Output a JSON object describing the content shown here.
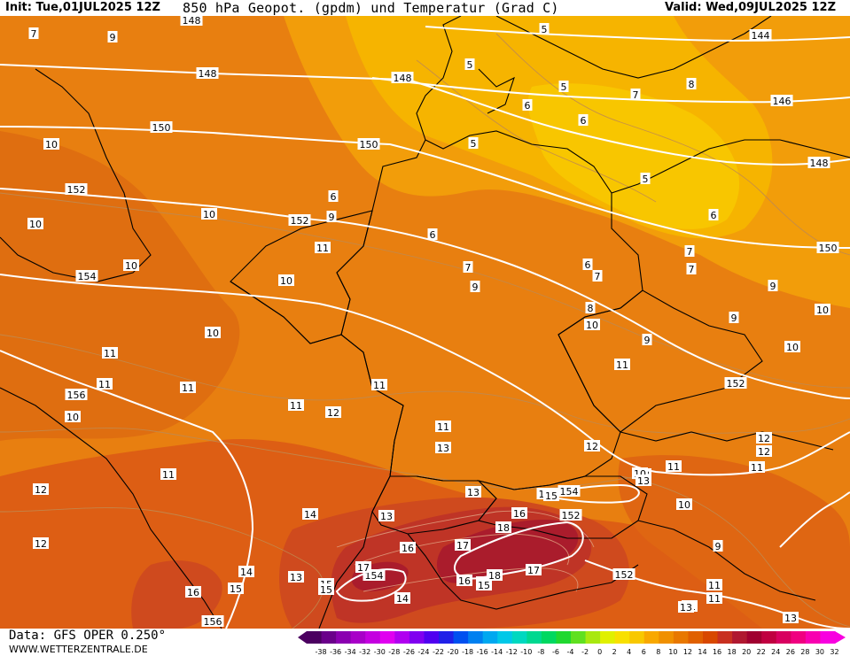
{
  "header": {
    "init": "Init: Tue,01JUL2025 12Z",
    "title": "850 hPa Geopot. (gpdm) und Temperatur (Grad C)",
    "valid": "Valid: Wed,09JUL2025 12Z"
  },
  "footer": {
    "data_source": "Data: GFS OPER 0.250°",
    "website": "WWW.WETTERZENTRALE.DE"
  },
  "legend": {
    "values": [
      "-38",
      "-36",
      "-34",
      "-32",
      "-30",
      "-28",
      "-26",
      "-24",
      "-22",
      "-20",
      "-18",
      "-16",
      "-14",
      "-12",
      "-10",
      "-8",
      "-6",
      "-4",
      "-2",
      "0",
      "2",
      "4",
      "6",
      "8",
      "10",
      "12",
      "14",
      "16",
      "18",
      "20",
      "22",
      "24",
      "26",
      "28",
      "30",
      "32"
    ],
    "colors": [
      "#4b0060",
      "#6a008a",
      "#8a00b0",
      "#a800c8",
      "#c400e0",
      "#e000f0",
      "#b000f0",
      "#8000f0",
      "#5000f0",
      "#2020e8",
      "#0050f0",
      "#0080f0",
      "#00a8f0",
      "#00c8e8",
      "#00d8c0",
      "#00d890",
      "#00d860",
      "#20d830",
      "#60e020",
      "#a8e810",
      "#e0f000",
      "#f8e000",
      "#f8c800",
      "#f8a800",
      "#f09000",
      "#e87800",
      "#e06000",
      "#d84800",
      "#c83020",
      "#b01830",
      "#a00030",
      "#c00040",
      "#d80060",
      "#f00080",
      "#f800b0",
      "#f800e0"
    ]
  },
  "map": {
    "colors": {
      "base": "#e87f10",
      "deep": "#df6a0c",
      "north": "#f29d0a",
      "yellow": "#f6b800",
      "brightyellow": "#f8c800",
      "hot": "#d9501a",
      "hotter": "#c83822",
      "hottest": "#b5202a",
      "isoline": "#ffffff",
      "tempcontour": "#b0b0b0",
      "border": "#000000"
    },
    "geopotential_labels": [
      "148",
      "148",
      "148",
      "144",
      "146",
      "148",
      "150",
      "150",
      "150",
      "152",
      "152",
      "154",
      "156",
      "152",
      "154",
      "152",
      "152",
      "154",
      "156",
      "15",
      "15",
      "15",
      "150"
    ],
    "temperature_labels": [
      "7",
      "9",
      "5",
      "5",
      "5",
      "7",
      "8",
      "6",
      "6",
      "5",
      "10",
      "10",
      "10",
      "10",
      "6",
      "9",
      "6",
      "5",
      "6",
      "7",
      "7",
      "6",
      "7",
      "9",
      "9",
      "10",
      "10",
      "11",
      "10",
      "11",
      "10",
      "11",
      "11",
      "8",
      "10",
      "9",
      "7",
      "11",
      "9",
      "10",
      "11",
      "11",
      "12",
      "11",
      "12",
      "13",
      "12",
      "11",
      "12",
      "11",
      "13",
      "14",
      "13",
      "13",
      "14",
      "15",
      "16",
      "18",
      "17",
      "16",
      "17",
      "18",
      "16",
      "15",
      "14",
      "13",
      "15",
      "17",
      "16",
      "12",
      "10",
      "11",
      "9",
      "11",
      "11",
      "10",
      "12",
      "13",
      "13",
      "13",
      "11"
    ]
  }
}
